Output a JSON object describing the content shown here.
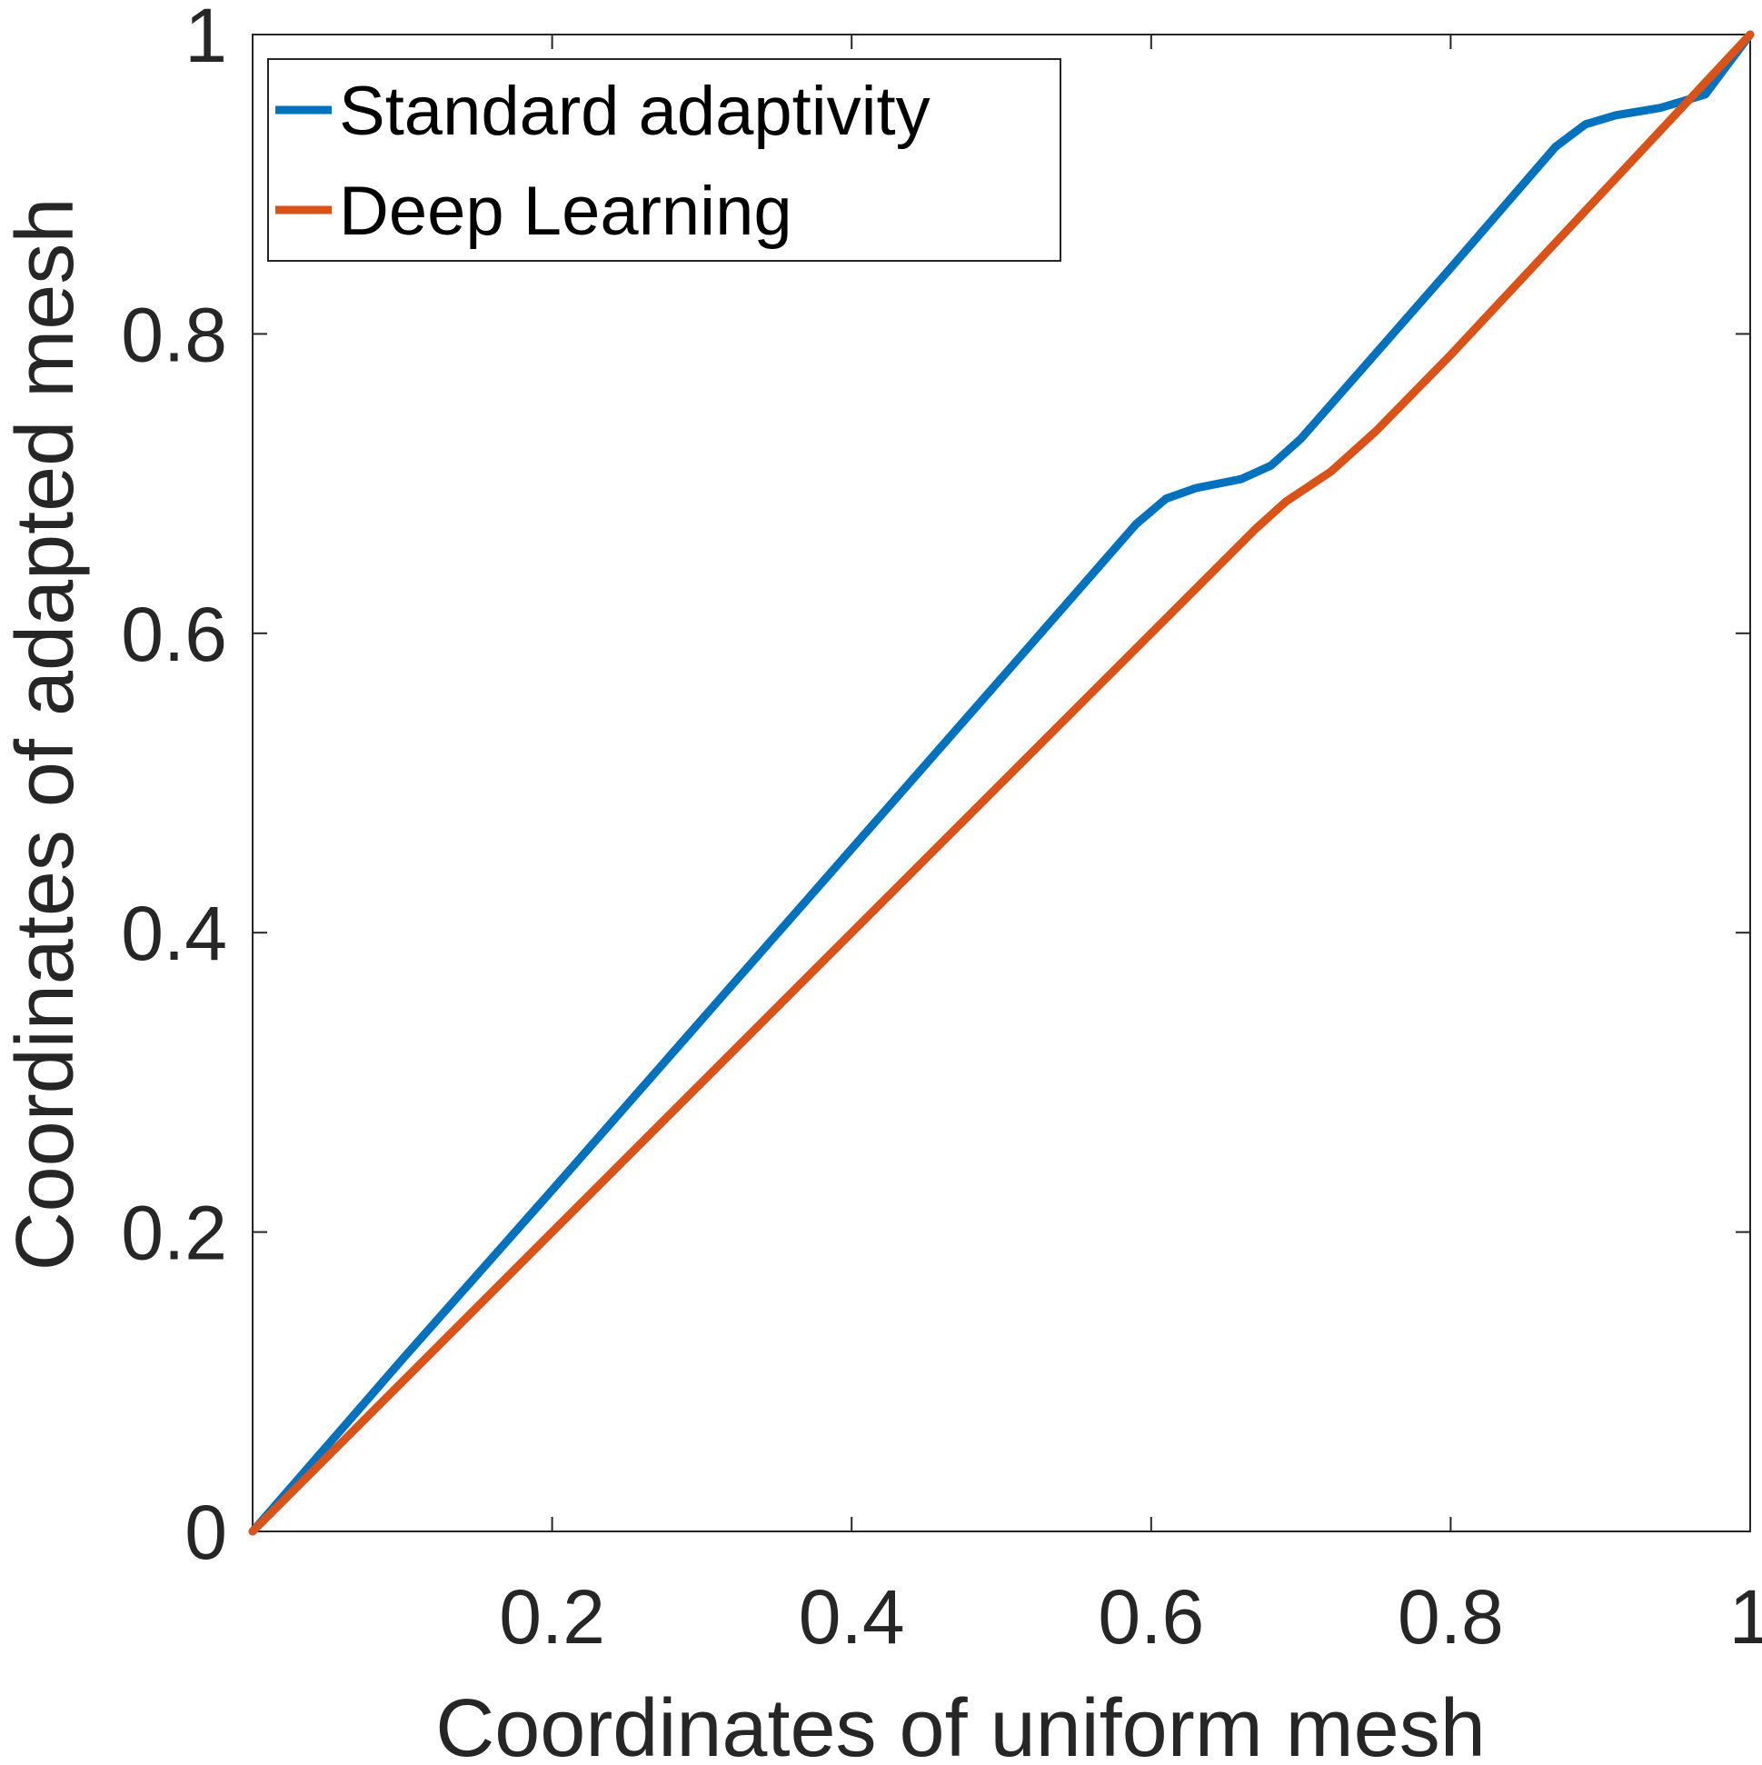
{
  "chart_data": {
    "type": "line",
    "title": "",
    "xlabel": "Coordinates of uniform mesh",
    "ylabel": "Coordinates of adapted mesh",
    "xlim": [
      0,
      1
    ],
    "ylim": [
      0,
      1
    ],
    "grid": false,
    "legend_position": "top-left",
    "xticks": [
      {
        "value": 0.2,
        "label": "0.2"
      },
      {
        "value": 0.4,
        "label": "0.4"
      },
      {
        "value": 0.6,
        "label": "0.6"
      },
      {
        "value": 0.8,
        "label": "0.8"
      },
      {
        "value": 1,
        "label": "1"
      }
    ],
    "yticks": [
      {
        "value": 0,
        "label": "0"
      },
      {
        "value": 0.2,
        "label": "0.2"
      },
      {
        "value": 0.4,
        "label": "0.4"
      },
      {
        "value": 0.6,
        "label": "0.6"
      },
      {
        "value": 0.8,
        "label": "0.8"
      },
      {
        "value": 1,
        "label": "1"
      }
    ],
    "series": [
      {
        "name": "Standard adaptivity",
        "color": "#0072BD",
        "x": [
          0,
          0.1,
          0.2,
          0.3,
          0.4,
          0.5,
          0.59,
          0.61,
          0.63,
          0.66,
          0.68,
          0.7,
          0.75,
          0.8,
          0.87,
          0.89,
          0.91,
          0.94,
          0.97,
          1.0
        ],
        "y": [
          0,
          0.115,
          0.228,
          0.342,
          0.456,
          0.57,
          0.673,
          0.69,
          0.697,
          0.703,
          0.712,
          0.73,
          0.787,
          0.844,
          0.925,
          0.94,
          0.946,
          0.951,
          0.96,
          1.0
        ]
      },
      {
        "name": "Deep Learning",
        "color": "#D95319",
        "x": [
          0,
          0.1,
          0.2,
          0.3,
          0.4,
          0.5,
          0.6,
          0.67,
          0.69,
          0.72,
          0.75,
          0.8,
          0.9,
          1.0
        ],
        "y": [
          0,
          0.1,
          0.2,
          0.3,
          0.4,
          0.5,
          0.6,
          0.67,
          0.688,
          0.708,
          0.735,
          0.786,
          0.893,
          1.0
        ]
      }
    ]
  }
}
